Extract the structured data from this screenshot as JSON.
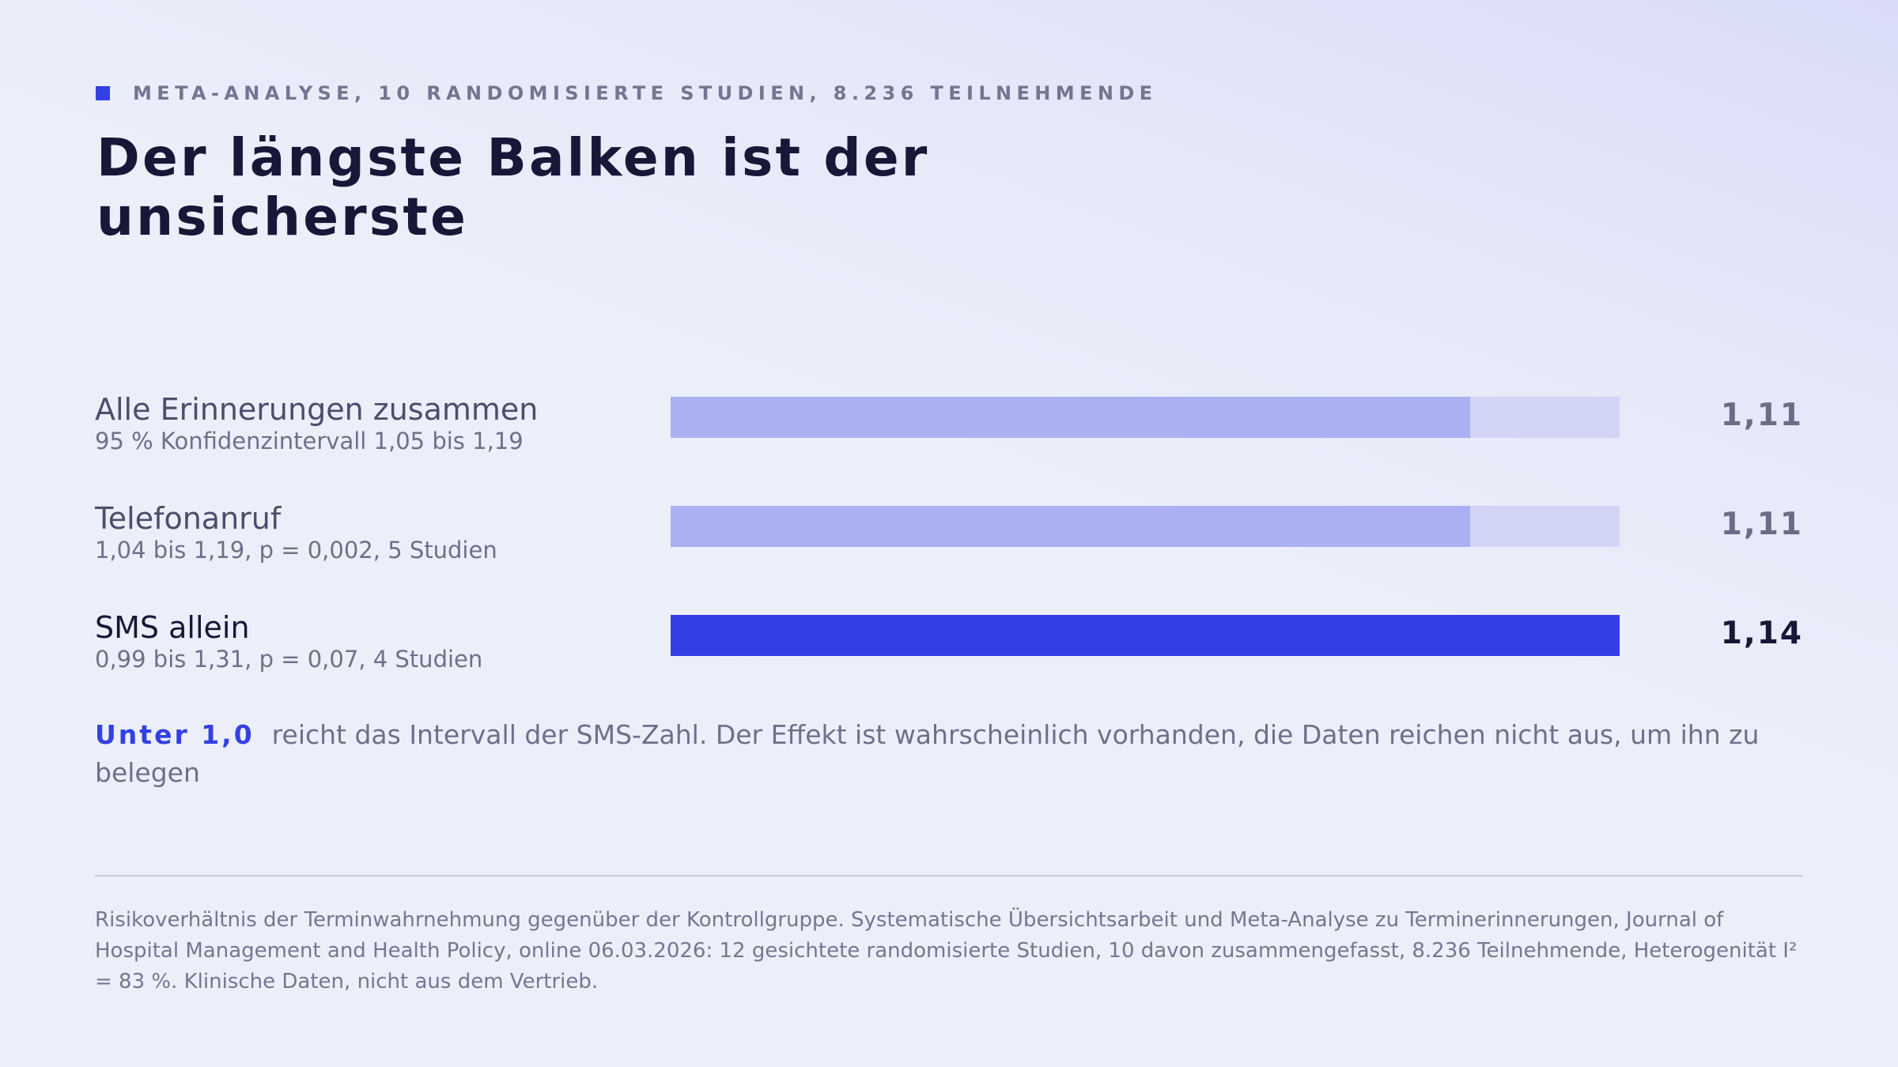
{
  "kicker": "META-ANALYSE, 10 RANDOMISIERTE STUDIEN, 8.236 TEILNEHMENDE",
  "title": "Der längste Balken ist der unsicherste",
  "colors": {
    "accent": "#3340e4",
    "bar_muted": "#aab0f2",
    "track": "#d2d5f6",
    "text_dark": "#171838"
  },
  "chart_data": {
    "type": "bar",
    "orientation": "horizontal",
    "title": "Der längste Balken ist der unsicherste",
    "xlim": [
      0.95,
      1.14
    ],
    "grid": false,
    "rows": [
      {
        "label": "Alle Erinnerungen zusammen",
        "sub": "95 % Konfidenzintervall 1,05 bis 1,19",
        "value": 1.11,
        "value_label": "1,11",
        "highlight": false
      },
      {
        "label": "Telefonanruf",
        "sub": "1,04 bis 1,19, p = 0,002, 5 Studien",
        "value": 1.11,
        "value_label": "1,11",
        "highlight": false
      },
      {
        "label": "SMS allein",
        "sub": "0,99 bis 1,31, p = 0,07, 4 Studien",
        "value": 1.14,
        "value_label": "1,14",
        "highlight": true
      }
    ]
  },
  "note": {
    "lead": "Unter 1,0",
    "text": "reicht das Intervall der SMS-Zahl. Der Effekt ist wahrscheinlich vorhanden, die Daten reichen nicht aus, um ihn zu belegen"
  },
  "source": "Risikoverhältnis der Terminwahrnehmung gegenüber der Kontrollgruppe. Systematische Übersichtsarbeit und Meta-Analyse zu Terminerinnerungen, Journal of Hospital Management and Health Policy, online 06.03.2026: 12 gesichtete randomisierte Studien, 10 davon zusammengefasst, 8.236 Teilnehmende, Heterogenität I² = 83 %. Klinische Daten, nicht aus dem Vertrieb."
}
